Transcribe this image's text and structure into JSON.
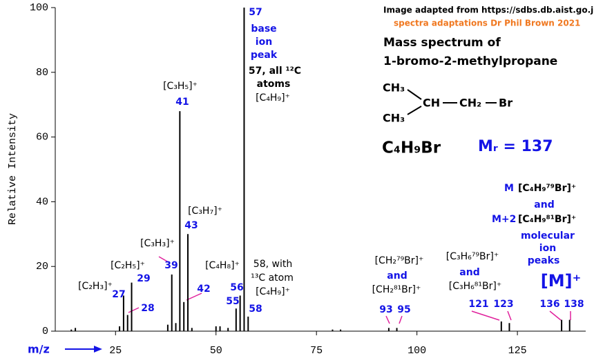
{
  "chart_data": {
    "type": "bar",
    "y_label": "Relative Intensity",
    "x_label": "m/z",
    "color": "#000000",
    "peak_label_color": "#1414e6",
    "x": [
      14,
      15,
      26,
      27,
      28,
      29,
      38,
      39,
      40,
      41,
      42,
      43,
      44,
      50,
      51,
      53,
      55,
      56,
      57,
      58,
      79,
      81,
      93,
      95,
      121,
      123,
      136,
      138
    ],
    "values": [
      0.5,
      1,
      1.5,
      11,
      5,
      15,
      2,
      17.5,
      2.5,
      68,
      9,
      30,
      1,
      1.5,
      1.5,
      1,
      7,
      11,
      100,
      4.5,
      0.5,
      0.5,
      1,
      1,
      3,
      2.5,
      3.5,
      3.5
    ],
    "xlim": [
      10,
      142
    ],
    "ylim": [
      0,
      100
    ],
    "xticks": [
      25,
      50,
      75,
      100,
      125
    ],
    "yticks": [
      0,
      20,
      40,
      60,
      80,
      100
    ],
    "annotations": [
      {
        "text": "Image adapted from https://sdbs.db.aist.go.jp",
        "color": "#000000"
      },
      {
        "text": "spectra adaptations Dr Phil Brown 2021",
        "color": "#f07820"
      },
      {
        "text": "Mass spectrum of",
        "color": "#000000"
      },
      {
        "text": "1-bromo-2-methylpropane",
        "color": "#000000"
      },
      {
        "text": "CH₃",
        "color": "#000000"
      },
      {
        "text": "CH",
        "color": "#000000"
      },
      {
        "text": "CH₂",
        "color": "#000000"
      },
      {
        "text": "Br",
        "color": "#000000"
      },
      {
        "text": "CH₃",
        "color": "#000000"
      },
      {
        "text": "C₄H₉Br",
        "color": "#000000"
      },
      {
        "text": "Mᵣ = 137",
        "color": "#1414e6"
      },
      {
        "text": "M",
        "color": "#1414e6"
      },
      {
        "text": "[C₄H₉⁷⁹Br]⁺",
        "color": "#000000"
      },
      {
        "text": "and",
        "color": "#1414e6"
      },
      {
        "text": "M+2",
        "color": "#1414e6"
      },
      {
        "text": "[C₄H₉⁸¹Br]⁺",
        "color": "#000000"
      },
      {
        "text": "molecular",
        "color": "#1414e6"
      },
      {
        "text": "ion",
        "color": "#1414e6"
      },
      {
        "text": "peaks",
        "color": "#1414e6"
      },
      {
        "text": "[M]⁺",
        "color": "#1414e6"
      },
      {
        "text": "[C₂H₃]⁺",
        "color": "#000000"
      },
      {
        "text": "[C₂H₅]⁺",
        "color": "#000000"
      },
      {
        "text": "[C₃H₃]⁺",
        "color": "#000000"
      },
      {
        "text": "[C₃H₅]⁺",
        "color": "#000000"
      },
      {
        "text": "[C₃H₇]⁺",
        "color": "#000000"
      },
      {
        "text": "[C₄H₈]⁺",
        "color": "#000000"
      },
      {
        "text": "base",
        "color": "#1414e6"
      },
      {
        "text": "ion",
        "color": "#1414e6"
      },
      {
        "text": "peak",
        "color": "#1414e6"
      },
      {
        "text": "57, all ¹²C",
        "color": "#000000"
      },
      {
        "text": "atoms",
        "color": "#000000"
      },
      {
        "text": "[C₄H₉]⁺",
        "color": "#000000"
      },
      {
        "text": "58, with",
        "color": "#000000"
      },
      {
        "text": "¹³C atom",
        "color": "#000000"
      },
      {
        "text": "[C₄H₉]⁺",
        "color": "#000000"
      },
      {
        "text": "[CH₂⁷⁹Br]⁺",
        "color": "#000000"
      },
      {
        "text": "and",
        "color": "#1414e6"
      },
      {
        "text": "[CH₂⁸¹Br]⁺",
        "color": "#000000"
      },
      {
        "text": "[C₃H₆⁷⁹Br]⁺",
        "color": "#000000"
      },
      {
        "text": "and",
        "color": "#1414e6"
      },
      {
        "text": "[C₃H₆⁸¹Br]⁺",
        "color": "#000000"
      }
    ]
  }
}
